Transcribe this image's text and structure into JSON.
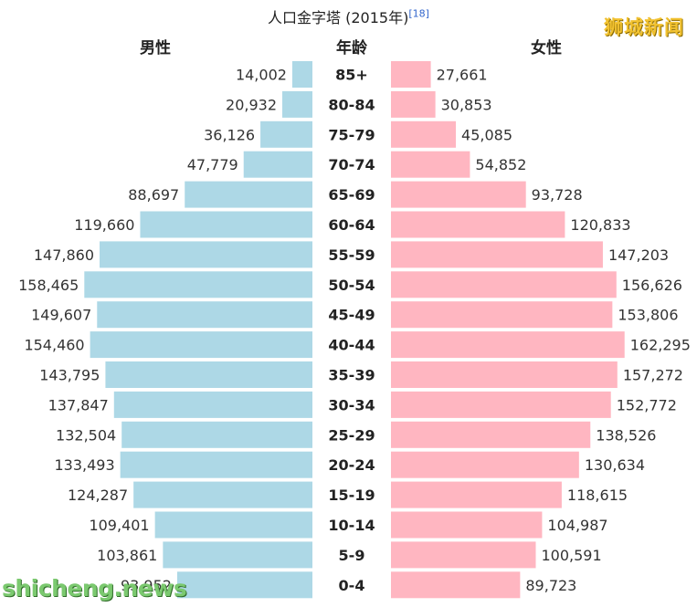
{
  "title": "人口金字塔 (2015年)",
  "title_ref": "[18]",
  "watermark_top": "狮城新闻",
  "watermark_bottom": "shicheng.news",
  "colors": {
    "male": "#add8e6",
    "female": "#ffb6c1"
  },
  "chart_data": {
    "type": "bar",
    "orientation": "horizontal-population-pyramid",
    "title": "人口金字塔 (2015年)",
    "headers": {
      "male": "男性",
      "age": "年龄",
      "female": "女性"
    },
    "categories": [
      "85+",
      "80-84",
      "75-79",
      "70-74",
      "65-69",
      "60-64",
      "55-59",
      "50-54",
      "45-49",
      "40-44",
      "35-39",
      "30-34",
      "25-29",
      "20-24",
      "15-19",
      "10-14",
      "5-9",
      "0-4"
    ],
    "series": [
      {
        "name": "男性",
        "values": [
          14002,
          20932,
          36126,
          47779,
          88697,
          119660,
          147860,
          158465,
          149607,
          154460,
          143795,
          137847,
          132504,
          133493,
          124287,
          109401,
          103861,
          93952
        ]
      },
      {
        "name": "女性",
        "values": [
          27661,
          30853,
          45085,
          54852,
          93728,
          120833,
          147203,
          156626,
          153806,
          162295,
          157272,
          152772,
          138526,
          130634,
          118615,
          104987,
          100591,
          89723
        ]
      }
    ],
    "value_labels": {
      "male": [
        "14,002",
        "20,932",
        "36,126",
        "47,779",
        "88,697",
        "119,660",
        "147,860",
        "158,465",
        "149,607",
        "154,460",
        "143,795",
        "137,847",
        "132,504",
        "133,493",
        "124,287",
        "109,401",
        "103,861",
        "93,952"
      ],
      "female": [
        "27,661",
        "30,853",
        "45,085",
        "54,852",
        "93,728",
        "120,833",
        "147,203",
        "156,626",
        "153,806",
        "162,295",
        "157,272",
        "152,772",
        "138,526",
        "130,634",
        "118,615",
        "104,987",
        "100,591",
        "89,723"
      ]
    },
    "grid": false
  }
}
